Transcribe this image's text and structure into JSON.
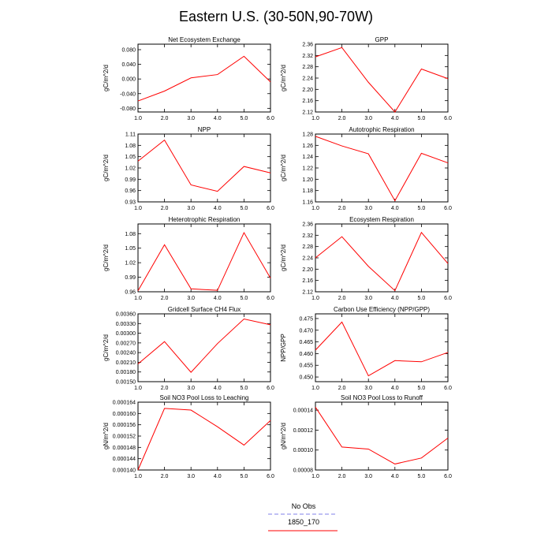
{
  "title": "Eastern U.S. (30-50N,90-70W)",
  "legend": {
    "placement": "bottom-center",
    "entries": [
      {
        "label": "No Obs",
        "color": "#9999ee",
        "style": "dashed"
      },
      {
        "label": "1850_170",
        "color": "#ff0000",
        "style": "solid"
      }
    ]
  },
  "chart_data": [
    {
      "type": "line",
      "title": "Net Ecosystem Exchange",
      "ylabel": "gC/m^2/d",
      "x": [
        1.0,
        2.0,
        3.0,
        4.0,
        5.0,
        6.0
      ],
      "xlim": [
        1.0,
        6.0
      ],
      "xticks": [
        "1.0",
        "2.0",
        "3.0",
        "4.0",
        "5.0",
        "6.0"
      ],
      "ylim": [
        -0.09,
        0.095
      ],
      "yticks": [
        -0.08,
        -0.04,
        0.0,
        0.04,
        0.08
      ],
      "ytick_labels": [
        "-0.080",
        "-0.040",
        "0.000",
        "0.040",
        "0.080"
      ],
      "series": [
        {
          "values": [
            -0.06,
            -0.033,
            0.003,
            0.012,
            0.062,
            -0.008
          ],
          "color": "#ff0000"
        }
      ]
    },
    {
      "type": "line",
      "title": "GPP",
      "ylabel": "gC/m^2/d",
      "x": [
        1.0,
        2.0,
        3.0,
        4.0,
        5.0,
        6.0
      ],
      "xlim": [
        1.0,
        6.0
      ],
      "xticks": [
        "1.0",
        "2.0",
        "3.0",
        "4.0",
        "5.0",
        "6.0"
      ],
      "ylim": [
        2.12,
        2.36
      ],
      "yticks": [
        2.12,
        2.16,
        2.2,
        2.24,
        2.28,
        2.32,
        2.36
      ],
      "ytick_labels": [
        "2.12",
        "2.16",
        "2.20",
        "2.24",
        "2.28",
        "2.32",
        "2.36"
      ],
      "series": [
        {
          "values": [
            2.315,
            2.348,
            2.225,
            2.12,
            2.272,
            2.238
          ],
          "color": "#ff0000"
        }
      ]
    },
    {
      "type": "line",
      "title": "NPP",
      "ylabel": "gC/m^2/d",
      "x": [
        1.0,
        2.0,
        3.0,
        4.0,
        5.0,
        6.0
      ],
      "xlim": [
        1.0,
        6.0
      ],
      "xticks": [
        "1.0",
        "2.0",
        "3.0",
        "4.0",
        "5.0",
        "6.0"
      ],
      "ylim": [
        0.93,
        1.11
      ],
      "yticks": [
        0.93,
        0.96,
        0.99,
        1.02,
        1.05,
        1.08,
        1.11
      ],
      "ytick_labels": [
        "0.93",
        "0.96",
        "0.99",
        "1.02",
        "1.05",
        "1.08",
        "1.11"
      ],
      "series": [
        {
          "values": [
            1.038,
            1.094,
            0.975,
            0.958,
            1.024,
            1.007
          ],
          "color": "#ff0000"
        }
      ]
    },
    {
      "type": "line",
      "title": "Autotrophic Respiration",
      "ylabel": "gC/m^2/d",
      "x": [
        1.0,
        2.0,
        3.0,
        4.0,
        5.0,
        6.0
      ],
      "xlim": [
        1.0,
        6.0
      ],
      "xticks": [
        "1.0",
        "2.0",
        "3.0",
        "4.0",
        "5.0",
        "6.0"
      ],
      "ylim": [
        1.16,
        1.28
      ],
      "yticks": [
        1.16,
        1.18,
        1.2,
        1.22,
        1.24,
        1.26,
        1.28
      ],
      "ytick_labels": [
        "1.16",
        "1.18",
        "1.20",
        "1.22",
        "1.24",
        "1.26",
        "1.28"
      ],
      "series": [
        {
          "values": [
            1.276,
            1.259,
            1.245,
            1.162,
            1.246,
            1.229
          ],
          "color": "#ff0000"
        }
      ]
    },
    {
      "type": "line",
      "title": "Heterotrophic Respiration",
      "ylabel": "gC/m^2/d",
      "x": [
        1.0,
        2.0,
        3.0,
        4.0,
        5.0,
        6.0
      ],
      "xlim": [
        1.0,
        6.0
      ],
      "xticks": [
        "1.0",
        "2.0",
        "3.0",
        "4.0",
        "5.0",
        "6.0"
      ],
      "ylim": [
        0.96,
        1.1
      ],
      "yticks": [
        0.96,
        0.99,
        1.02,
        1.05,
        1.08
      ],
      "ytick_labels": [
        "0.96",
        "0.99",
        "1.02",
        "1.05",
        "1.08"
      ],
      "series": [
        {
          "values": [
            0.962,
            1.057,
            0.966,
            0.963,
            1.082,
            0.988
          ],
          "color": "#ff0000"
        }
      ]
    },
    {
      "type": "line",
      "title": "Ecosystem Respiration",
      "ylabel": "gC/m^2/d",
      "x": [
        1.0,
        2.0,
        3.0,
        4.0,
        5.0,
        6.0
      ],
      "xlim": [
        1.0,
        6.0
      ],
      "xticks": [
        "1.0",
        "2.0",
        "3.0",
        "4.0",
        "5.0",
        "6.0"
      ],
      "ylim": [
        2.12,
        2.36
      ],
      "yticks": [
        2.12,
        2.16,
        2.2,
        2.24,
        2.28,
        2.32,
        2.36
      ],
      "ytick_labels": [
        "2.12",
        "2.16",
        "2.20",
        "2.24",
        "2.28",
        "2.32",
        "2.36"
      ],
      "series": [
        {
          "values": [
            2.24,
            2.315,
            2.21,
            2.124,
            2.33,
            2.22
          ],
          "color": "#ff0000"
        }
      ]
    },
    {
      "type": "line",
      "title": "Gridcell Surface CH4 Flux",
      "ylabel": "gC/m^2/d",
      "x": [
        1.0,
        2.0,
        3.0,
        4.0,
        5.0,
        6.0
      ],
      "xlim": [
        1.0,
        6.0
      ],
      "xticks": [
        "1.0",
        "2.0",
        "3.0",
        "4.0",
        "5.0",
        "6.0"
      ],
      "ylim": [
        0.0015,
        0.0036
      ],
      "yticks": [
        0.0015,
        0.0018,
        0.0021,
        0.0024,
        0.0027,
        0.003,
        0.0033,
        0.0036
      ],
      "ytick_labels": [
        "0.00150",
        "0.00180",
        "0.00210",
        "0.00240",
        "0.00270",
        "0.00300",
        "0.00330",
        "0.00360"
      ],
      "series": [
        {
          "values": [
            0.00205,
            0.00274,
            0.00179,
            0.00268,
            0.00344,
            0.00326
          ],
          "color": "#ff0000"
        }
      ]
    },
    {
      "type": "line",
      "title": "Carbon Use Efficiency (NPP/GPP)",
      "ylabel": "NPP/GPP",
      "x": [
        1.0,
        2.0,
        3.0,
        4.0,
        5.0,
        6.0
      ],
      "xlim": [
        1.0,
        6.0
      ],
      "xticks": [
        "1.0",
        "2.0",
        "3.0",
        "4.0",
        "5.0",
        "6.0"
      ],
      "ylim": [
        0.448,
        0.477
      ],
      "yticks": [
        0.45,
        0.455,
        0.46,
        0.465,
        0.47,
        0.475
      ],
      "ytick_labels": [
        "0.450",
        "0.455",
        "0.460",
        "0.465",
        "0.470",
        "0.475"
      ],
      "series": [
        {
          "values": [
            0.4615,
            0.4735,
            0.4505,
            0.457,
            0.4565,
            0.4605
          ],
          "color": "#ff0000"
        }
      ]
    },
    {
      "type": "line",
      "title": "Soil NO3 Pool Loss to Leaching",
      "ylabel": "gN/m^2/d",
      "x": [
        1.0,
        2.0,
        3.0,
        4.0,
        5.0,
        6.0
      ],
      "xlim": [
        1.0,
        6.0
      ],
      "xticks": [
        "1.0",
        "2.0",
        "3.0",
        "4.0",
        "5.0",
        "6.0"
      ],
      "ylim": [
        0.00014,
        0.000164
      ],
      "yticks": [
        0.00014,
        0.000144,
        0.000148,
        0.000152,
        0.000156,
        0.00016,
        0.000164
      ],
      "ytick_labels": [
        "0.000140",
        "0.000144",
        "0.000148",
        "0.000152",
        "0.000156",
        "0.000160",
        "0.000164"
      ],
      "series": [
        {
          "values": [
            0.00014,
            0.0001618,
            0.0001612,
            0.0001553,
            0.0001488,
            0.0001575
          ],
          "color": "#ff0000"
        }
      ]
    },
    {
      "type": "line",
      "title": "Soil NO3 Pool Loss to Runoff",
      "ylabel": "gN/m^2/d",
      "x": [
        1.0,
        2.0,
        3.0,
        4.0,
        5.0,
        6.0
      ],
      "xlim": [
        1.0,
        6.0
      ],
      "xticks": [
        "1.0",
        "2.0",
        "3.0",
        "4.0",
        "5.0",
        "6.0"
      ],
      "ylim": [
        8e-05,
        0.000148
      ],
      "yticks": [
        8e-05,
        0.0001,
        0.00012,
        0.00014
      ],
      "ytick_labels": [
        "0.00008",
        "0.00010",
        "0.00012",
        "0.00014"
      ],
      "series": [
        {
          "values": [
            0.000143,
            0.000103,
            0.000101,
            8.6e-05,
            9.2e-05,
            0.000112
          ],
          "color": "#ff0000"
        }
      ]
    }
  ]
}
